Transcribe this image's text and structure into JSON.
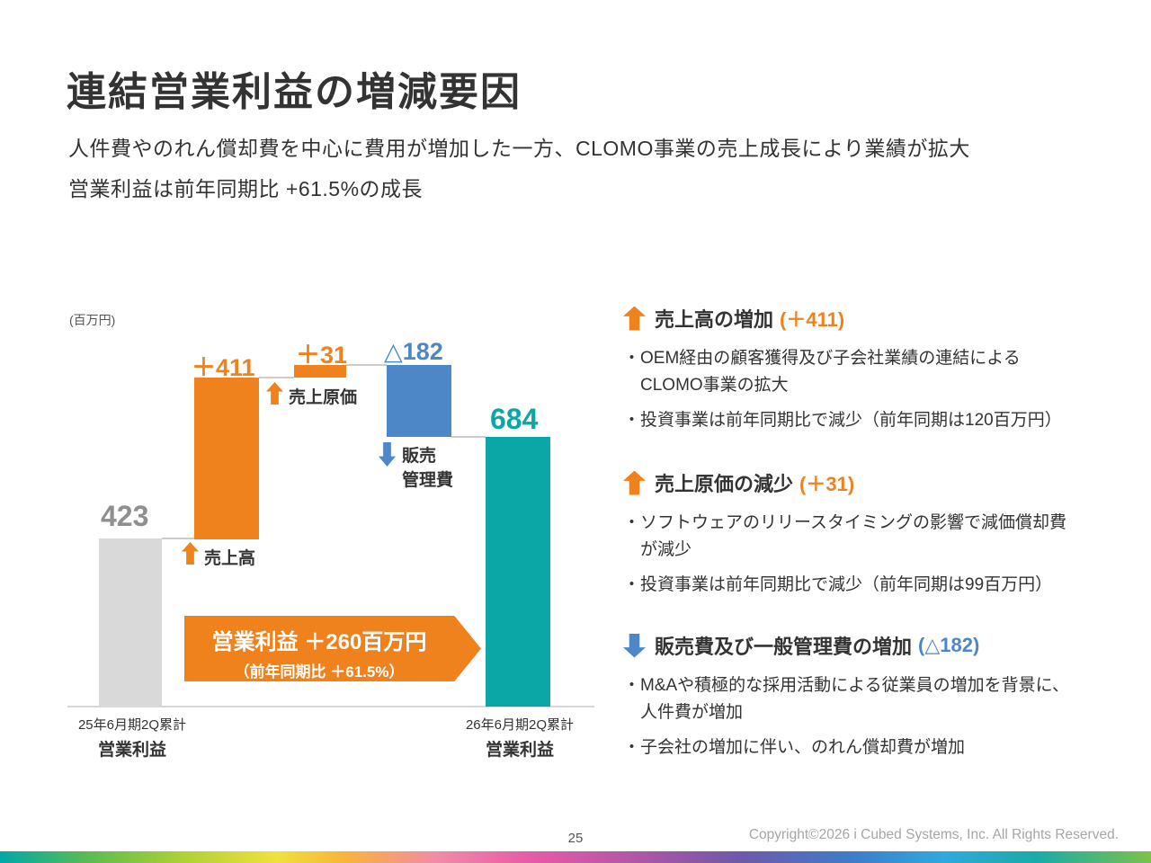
{
  "slide": {
    "title": "連結営業利益の増減要因",
    "subtitle_line1": "人件費やのれん償却費を中心に費用が増加した一方、CLOMO事業の売上成長により業績が拡大",
    "subtitle_line2": "営業利益は前年同期比 +61.5%の成長",
    "page_number": "25",
    "copyright": "Copyright©2026 i Cubed Systems, Inc. All Rights Reserved."
  },
  "chart_data": {
    "type": "bar",
    "subtype": "waterfall",
    "unit_label": "(百万円)",
    "categories": [
      "25年6月期2Q累計 営業利益",
      "売上高",
      "売上原価",
      "販売管理費",
      "26年6月期2Q累計 営業利益"
    ],
    "values": [
      423,
      411,
      31,
      -182,
      684
    ],
    "bar_roles": [
      "start-total",
      "increase",
      "increase",
      "decrease",
      "end-total"
    ],
    "bar_labels": [
      "423",
      "＋411",
      "＋31",
      "△182",
      "684"
    ],
    "bar_colors": [
      "#D9D9D9",
      "#F0821E",
      "#F0821E",
      "#4E87C8",
      "#0BA7A7"
    ],
    "ylim": [
      0,
      950
    ],
    "grid": false,
    "annotations": [
      {
        "label": "売上高",
        "direction": "up",
        "color": "#F0821E"
      },
      {
        "label": "売上原価",
        "direction": "up",
        "color": "#F0821E"
      },
      {
        "label_line1": "販売",
        "label_line2": "管理費",
        "direction": "down",
        "color": "#4E87C8"
      }
    ],
    "banner": {
      "line1": "営業利益 ＋260百万円",
      "line2": "（前年同期比 ＋61.5%）"
    },
    "x_axis": {
      "left": {
        "line1": "25年6月期2Q累計",
        "line2": "営業利益"
      },
      "right": {
        "line1": "26年6月期2Q累計",
        "line2": "営業利益"
      }
    }
  },
  "details": {
    "sections": [
      {
        "icon": "up-arrow-icon",
        "title": "売上高の増加",
        "value": "(＋411)",
        "lines": [
          "・OEM経由の顧客獲得及び子会社業績の連結による",
          "CLOMO事業の拡大",
          "・投資事業は前年同期比で減少（前年同期は120百万円）"
        ]
      },
      {
        "icon": "up-arrow-icon",
        "title": "売上原価の減少",
        "value": "(＋31)",
        "lines": [
          "・ソフトウェアのリリースタイミングの影響で減価償却費",
          "が減少",
          "・投資事業は前年同期比で減少（前年同期は99百万円）"
        ]
      },
      {
        "icon": "down-arrow-icon",
        "title": "販売費及び一般管理費の増加",
        "value": "(△182)",
        "lines": [
          "・M&Aや積極的な採用活動による従業員の増加を背景に、",
          "人件費が増加",
          "・子会社の増加に伴い、のれん償却費が増加"
        ]
      }
    ]
  },
  "colors": {
    "orange": "#F0821E",
    "blue": "#4E87C8",
    "teal": "#0BA7A7",
    "bar_gray": "#D9D9D9",
    "text_dark": "#333333",
    "value_gray": "#8F8F8F"
  }
}
